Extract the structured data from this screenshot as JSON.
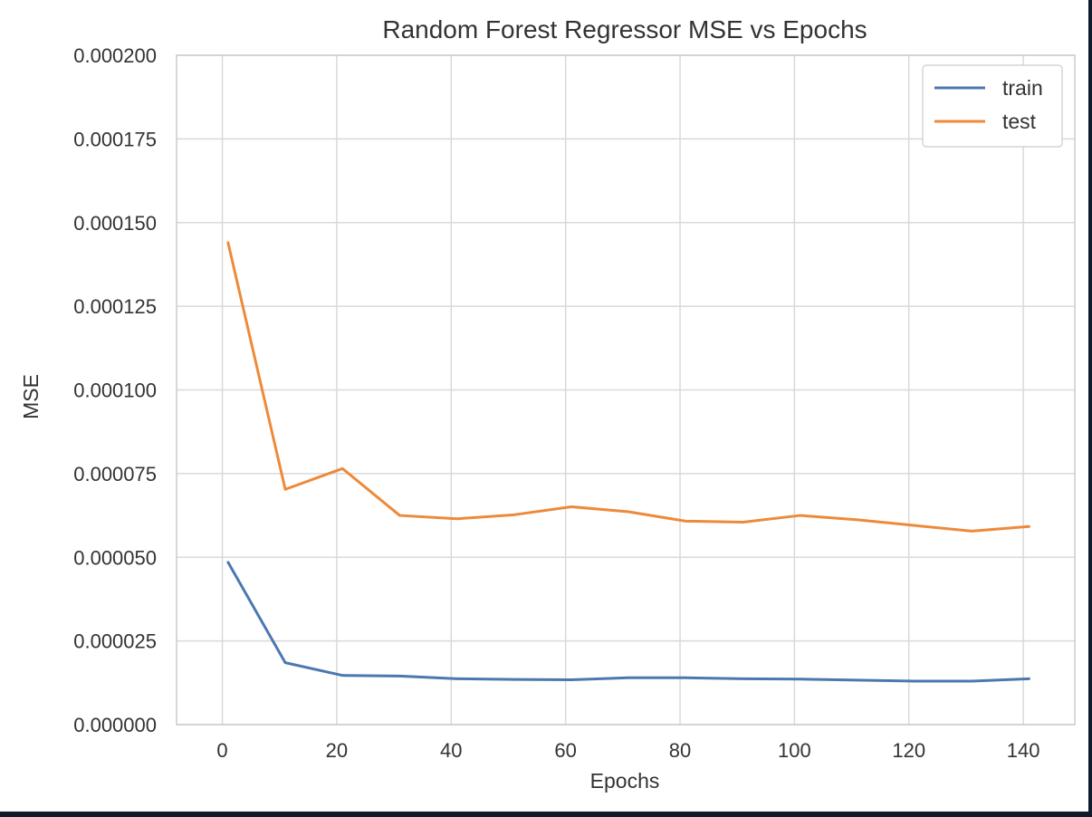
{
  "chart_data": {
    "type": "line",
    "title": "Random Forest Regressor MSE vs Epochs",
    "xlabel": "Epochs",
    "ylabel": "MSE",
    "xlim": [
      -8,
      149
    ],
    "ylim": [
      0,
      0.0002
    ],
    "xticks": [
      0,
      20,
      40,
      60,
      80,
      100,
      120,
      140
    ],
    "yticks": [
      0,
      2.5e-05,
      5e-05,
      7.5e-05,
      0.0001,
      0.000125,
      0.00015,
      0.000175,
      0.0002
    ],
    "ytick_labels": [
      "0.000000",
      "0.000025",
      "0.000050",
      "0.000075",
      "0.000100",
      "0.000125",
      "0.000150",
      "0.000175",
      "0.000200"
    ],
    "grid": true,
    "legend_position": "top-right",
    "x": [
      1,
      11,
      21,
      31,
      41,
      51,
      61,
      71,
      81,
      91,
      101,
      111,
      121,
      131,
      141
    ],
    "series": [
      {
        "name": "train",
        "color": "#4c78b0",
        "values": [
          4.85e-05,
          1.85e-05,
          1.47e-05,
          1.45e-05,
          1.37e-05,
          1.35e-05,
          1.34e-05,
          1.4e-05,
          1.4e-05,
          1.37e-05,
          1.36e-05,
          1.33e-05,
          1.3e-05,
          1.3e-05,
          1.37e-05
        ]
      },
      {
        "name": "test",
        "color": "#ed8a3a",
        "values": [
          0.000144,
          7.03e-05,
          7.65e-05,
          6.25e-05,
          6.15e-05,
          6.27e-05,
          6.51e-05,
          6.36e-05,
          6.08e-05,
          6.05e-05,
          6.25e-05,
          6.12e-05,
          5.95e-05,
          5.78e-05,
          5.92e-05
        ]
      }
    ]
  }
}
